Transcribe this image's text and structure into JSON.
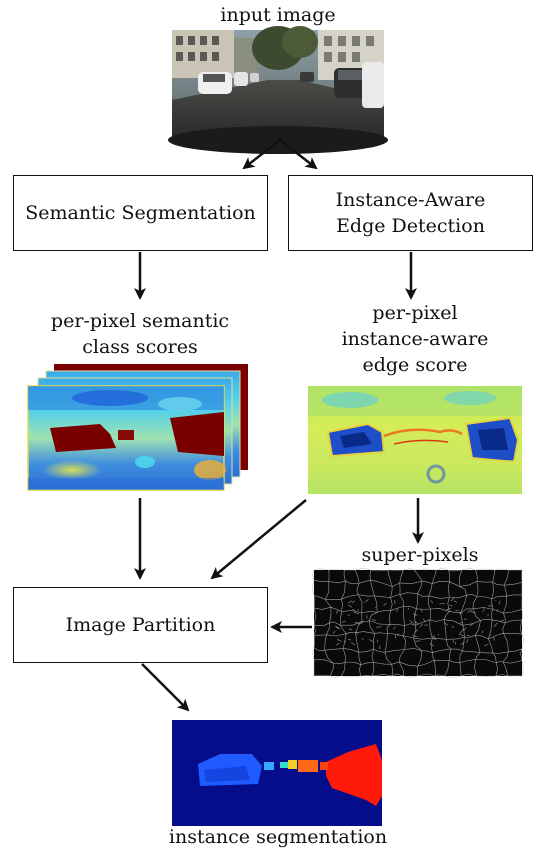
{
  "labels": {
    "input": "input image",
    "semantic_scores": [
      "per-pixel semantic",
      "class scores"
    ],
    "edge_score": [
      "per-pixel",
      "instance-aware",
      "edge score"
    ],
    "superpixels": "super-pixels",
    "output": "instance segmentation"
  },
  "boxes": {
    "semantic": [
      "Semantic Segmentation"
    ],
    "edge": [
      "Instance-Aware",
      "Edge Detection"
    ],
    "partition": [
      "Image Partition"
    ]
  },
  "images": {
    "input": "street-scene-photo",
    "semantic_maps": "semantic-score-heatmap-stack",
    "edge_map": "edge-score-heatmap",
    "superpixels": "superpixel-boundary-map",
    "output": "instance-mask-map"
  },
  "colors": {
    "stroke": "#111111",
    "heat_dark_red": "#7a0000",
    "heat_blue": "#1e5bd8",
    "heat_cyan": "#36c8e8",
    "heat_yellow": "#e8e84a",
    "instance_bg": "#050d8a",
    "instance_blue": "#1f5bff",
    "instance_red": "#ff1a0a"
  }
}
